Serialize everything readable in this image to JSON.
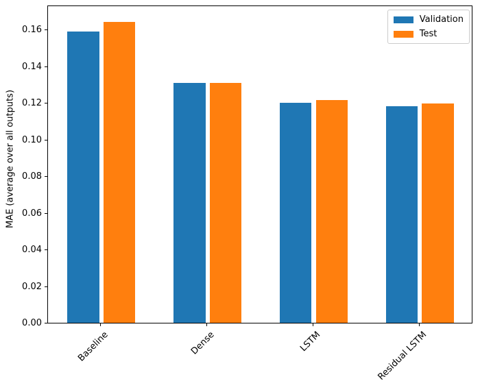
{
  "chart_data": {
    "type": "bar",
    "categories": [
      "Baseline",
      "Dense",
      "LSTM",
      "Residual LSTM"
    ],
    "series": [
      {
        "name": "Validation",
        "color": "#1f77b4",
        "values": [
          0.159,
          0.131,
          0.12,
          0.118
        ]
      },
      {
        "name": "Test",
        "color": "#ff7f0e",
        "values": [
          0.164,
          0.131,
          0.1215,
          0.1195
        ]
      }
    ],
    "title": "",
    "xlabel": "",
    "ylabel": "MAE (average over all outputs)",
    "ylim": [
      0,
      0.1735
    ],
    "yticks": [
      0,
      0.02,
      0.04,
      0.06,
      0.08,
      0.1,
      0.12,
      0.14,
      0.16
    ],
    "ytick_labels": [
      "0.00",
      "0.02",
      "0.04",
      "0.06",
      "0.08",
      "0.10",
      "0.12",
      "0.14",
      "0.16"
    ],
    "xlim": [
      -0.502,
      3.502
    ],
    "bar_width": 0.3,
    "bar_offset": 0.17,
    "xtick_rotation_deg": 45,
    "grid": false,
    "legend": {
      "position": "upper right",
      "entries": [
        "Validation",
        "Test"
      ]
    }
  }
}
